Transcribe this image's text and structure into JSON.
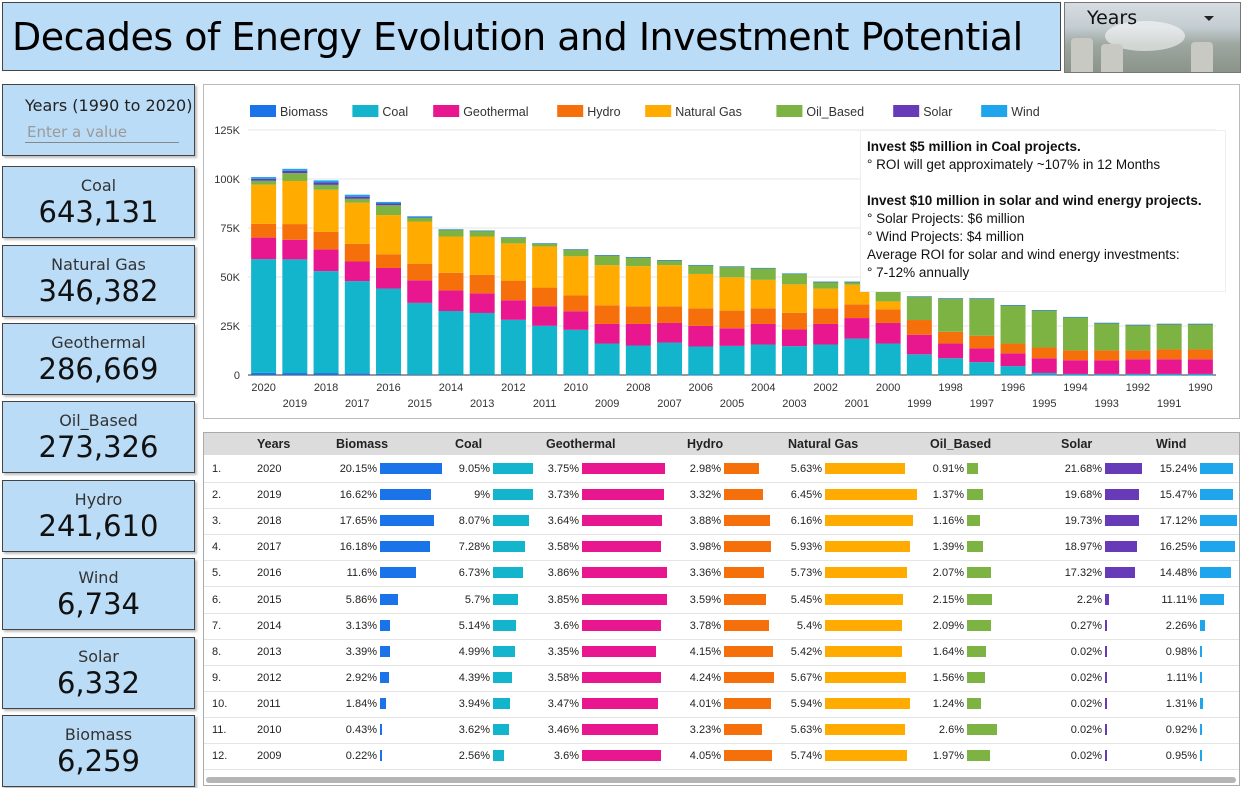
{
  "header": {
    "title": "Decades of Energy Evolution and Investment Potential"
  },
  "years_dropdown": {
    "label": "Years"
  },
  "year_range": {
    "label": "Years (1990 to 2020)",
    "placeholder": "Enter a value"
  },
  "scorecards": [
    {
      "label": "Coal",
      "value": "643,131"
    },
    {
      "label": "Natural Gas",
      "value": "346,382"
    },
    {
      "label": "Geothermal",
      "value": "286,669"
    },
    {
      "label": "Oil_Based",
      "value": "273,326"
    },
    {
      "label": "Hydro",
      "value": "241,610"
    },
    {
      "label": "Wind",
      "value": "6,734"
    },
    {
      "label": "Solar",
      "value": "6,332"
    },
    {
      "label": "Biomass",
      "value": "6,259"
    }
  ],
  "colors": {
    "Biomass": "#1a73e8",
    "Coal": "#12b5cb",
    "Geothermal": "#e8168f",
    "Hydro": "#f5700a",
    "Natural Gas": "#ffab00",
    "Oil_Based": "#7cb342",
    "Solar": "#673ab7",
    "Wind": "#1ea5ec"
  },
  "investment_note": {
    "heading1": "Invest $5 million in Coal projects.",
    "line1": "° ROI will get approximately ~107% in 12 Months",
    "heading2": "Invest $10 million in solar and wind energy projects.",
    "line2": "° Solar Projects: $6 million",
    "line3": "° Wind Projects: $4 million",
    "line4": "Average ROI for solar and wind energy investments:",
    "line5": "° 7-12% annually"
  },
  "chart_data": {
    "type": "bar",
    "stacked": true,
    "legend_position": "top",
    "categories": [
      "2020",
      "2019",
      "2018",
      "2017",
      "2016",
      "2015",
      "2014",
      "2013",
      "2012",
      "2011",
      "2010",
      "2009",
      "2008",
      "2007",
      "2006",
      "2005",
      "2004",
      "2003",
      "2002",
      "2001",
      "2000",
      "1999",
      "1998",
      "1997",
      "1996",
      "1995",
      "1994",
      "1993",
      "1992",
      "1991",
      "1990"
    ],
    "y_ticks": [
      "0",
      "25K",
      "50K",
      "75K",
      "100K",
      "125K"
    ],
    "ylim": [
      0,
      125000
    ],
    "series": [
      {
        "name": "Biomass",
        "values": [
          1100,
          1000,
          1000,
          900,
          600,
          300,
          150,
          150,
          150,
          100,
          50,
          50,
          50,
          50,
          50,
          50,
          50,
          50,
          50,
          50,
          50,
          50,
          50,
          50,
          50,
          50,
          50,
          50,
          50,
          50,
          50
        ]
      },
      {
        "name": "Coal",
        "values": [
          58000,
          58000,
          52000,
          47000,
          43500,
          36500,
          32500,
          31500,
          28000,
          25000,
          23000,
          16000,
          15000,
          16500,
          14500,
          14800,
          15500,
          14700,
          15500,
          18500,
          16000,
          10500,
          8500,
          6500,
          4500,
          1000,
          500,
          500,
          500,
          500,
          500
        ]
      },
      {
        "name": "Geothermal",
        "values": [
          11000,
          10000,
          11000,
          10000,
          10500,
          11500,
          10500,
          10000,
          10000,
          10000,
          9500,
          10000,
          11000,
          10000,
          10500,
          9000,
          10500,
          8500,
          10500,
          10500,
          10500,
          10000,
          7500,
          7000,
          6500,
          7500,
          7000,
          7000,
          7500,
          7500,
          7500
        ]
      },
      {
        "name": "Hydro",
        "values": [
          7000,
          8000,
          9000,
          9000,
          7000,
          8500,
          9000,
          9500,
          10000,
          9500,
          8000,
          9500,
          9000,
          8500,
          9000,
          9000,
          8000,
          8500,
          8000,
          7000,
          7000,
          7500,
          6000,
          6500,
          5000,
          5500,
          5000,
          5000,
          4500,
          5000,
          5000
        ]
      },
      {
        "name": "Natural Gas",
        "values": [
          20000,
          22000,
          21500,
          21000,
          20000,
          21500,
          18500,
          19500,
          19000,
          21000,
          20000,
          20500,
          20500,
          21000,
          17500,
          17000,
          14500,
          14500,
          10000,
          10000,
          4000,
          0,
          0,
          0,
          0,
          0,
          0,
          0,
          0,
          0,
          0
        ]
      },
      {
        "name": "Oil_Based",
        "values": [
          2000,
          4000,
          2500,
          2000,
          5000,
          2000,
          3500,
          3000,
          3000,
          1500,
          3500,
          5000,
          4500,
          2500,
          4500,
          5500,
          6000,
          5500,
          3500,
          1500,
          8000,
          12000,
          17000,
          19000,
          19500,
          19000,
          17000,
          14000,
          13000,
          13000,
          13000
        ]
      },
      {
        "name": "Solar",
        "values": [
          1000,
          1200,
          1200,
          1100,
          900,
          100,
          50,
          30,
          30,
          20,
          20,
          20,
          20,
          20,
          20,
          20,
          20,
          20,
          20,
          20,
          20,
          20,
          20,
          20,
          20,
          20,
          20,
          20,
          20,
          20,
          20
        ]
      },
      {
        "name": "Wind",
        "values": [
          900,
          1000,
          1100,
          1000,
          800,
          600,
          150,
          80,
          80,
          80,
          80,
          80,
          80,
          80,
          80,
          80,
          80,
          80,
          80,
          80,
          80,
          80,
          80,
          80,
          80,
          80,
          80,
          80,
          80,
          80,
          80
        ]
      }
    ]
  },
  "table": {
    "columns": [
      "Years",
      "Biomass",
      "Coal",
      "Geothermal",
      "Hydro",
      "Natural Gas",
      "Oil_Based",
      "Solar",
      "Wind"
    ],
    "rows": [
      {
        "idx": "1.",
        "year": "2020",
        "v": [
          "20.15%",
          "9.05%",
          "3.75%",
          "2.98%",
          "5.63%",
          "0.91%",
          "21.68%",
          "15.24%"
        ],
        "f": [
          20.15,
          9.05,
          3.75,
          2.98,
          5.63,
          0.91,
          21.68,
          15.24
        ]
      },
      {
        "idx": "2.",
        "year": "2019",
        "v": [
          "16.62%",
          "9%",
          "3.73%",
          "3.32%",
          "6.45%",
          "1.37%",
          "19.68%",
          "15.47%"
        ],
        "f": [
          16.62,
          9,
          3.73,
          3.32,
          6.45,
          1.37,
          19.68,
          15.47
        ]
      },
      {
        "idx": "3.",
        "year": "2018",
        "v": [
          "17.65%",
          "8.07%",
          "3.64%",
          "3.88%",
          "6.16%",
          "1.16%",
          "19.73%",
          "17.12%"
        ],
        "f": [
          17.65,
          8.07,
          3.64,
          3.88,
          6.16,
          1.16,
          19.73,
          17.12
        ]
      },
      {
        "idx": "4.",
        "year": "2017",
        "v": [
          "16.18%",
          "7.28%",
          "3.58%",
          "3.98%",
          "5.93%",
          "1.39%",
          "18.97%",
          "16.25%"
        ],
        "f": [
          16.18,
          7.28,
          3.58,
          3.98,
          5.93,
          1.39,
          18.97,
          16.25
        ]
      },
      {
        "idx": "5.",
        "year": "2016",
        "v": [
          "11.6%",
          "6.73%",
          "3.86%",
          "3.36%",
          "5.73%",
          "2.07%",
          "17.32%",
          "14.48%"
        ],
        "f": [
          11.6,
          6.73,
          3.86,
          3.36,
          5.73,
          2.07,
          17.32,
          14.48
        ]
      },
      {
        "idx": "6.",
        "year": "2015",
        "v": [
          "5.86%",
          "5.7%",
          "3.85%",
          "3.59%",
          "5.45%",
          "2.15%",
          "2.2%",
          "11.11%"
        ],
        "f": [
          5.86,
          5.7,
          3.85,
          3.59,
          5.45,
          2.15,
          2.2,
          11.11
        ]
      },
      {
        "idx": "7.",
        "year": "2014",
        "v": [
          "3.13%",
          "5.14%",
          "3.6%",
          "3.78%",
          "5.4%",
          "2.09%",
          "0.27%",
          "2.26%"
        ],
        "f": [
          3.13,
          5.14,
          3.6,
          3.78,
          5.4,
          2.09,
          0.27,
          2.26
        ]
      },
      {
        "idx": "8.",
        "year": "2013",
        "v": [
          "3.39%",
          "4.99%",
          "3.35%",
          "4.15%",
          "5.42%",
          "1.64%",
          "0.02%",
          "0.98%"
        ],
        "f": [
          3.39,
          4.99,
          3.35,
          4.15,
          5.42,
          1.64,
          0.02,
          0.98
        ]
      },
      {
        "idx": "9.",
        "year": "2012",
        "v": [
          "2.92%",
          "4.39%",
          "3.58%",
          "4.24%",
          "5.67%",
          "1.56%",
          "0.02%",
          "1.11%"
        ],
        "f": [
          2.92,
          4.39,
          3.58,
          4.24,
          5.67,
          1.56,
          0.02,
          1.11
        ]
      },
      {
        "idx": "10.",
        "year": "2011",
        "v": [
          "1.84%",
          "3.94%",
          "3.47%",
          "4.01%",
          "5.94%",
          "1.24%",
          "0.02%",
          "1.31%"
        ],
        "f": [
          1.84,
          3.94,
          3.47,
          4.01,
          5.94,
          1.24,
          0.02,
          1.31
        ]
      },
      {
        "idx": "11.",
        "year": "2010",
        "v": [
          "0.43%",
          "3.62%",
          "3.46%",
          "3.23%",
          "5.63%",
          "2.6%",
          "0.02%",
          "0.92%"
        ],
        "f": [
          0.43,
          3.62,
          3.46,
          3.23,
          5.63,
          2.6,
          0.02,
          0.92
        ]
      },
      {
        "idx": "12.",
        "year": "2009",
        "v": [
          "0.22%",
          "2.56%",
          "3.6%",
          "4.05%",
          "5.74%",
          "1.97%",
          "0.02%",
          "0.95%"
        ],
        "f": [
          0.22,
          2.56,
          3.6,
          4.05,
          5.74,
          1.97,
          0.02,
          0.95
        ]
      }
    ]
  }
}
